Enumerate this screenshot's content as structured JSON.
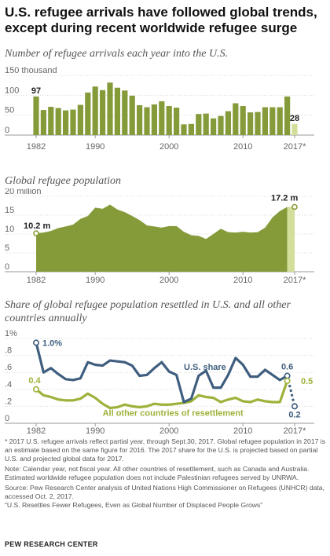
{
  "title": "U.S. refugee arrivals have followed global trends, except during recent worldwide refugee surge",
  "colors": {
    "green": "#859B3A",
    "light_green": "#D3DE9A",
    "blue": "#3F5E7F",
    "yellow_green": "#9DB23A",
    "grid": "#d9d9d9"
  },
  "notes": {
    "asterisk": "* 2017 U.S. refugee arrivals reflect partial year, through Sept.30, 2017. Global refugee population in 2017 is an estimate based on the same figure for 2016. The 2017 share for the U.S. is projected based on partial U.S. and projected global data for 2017.",
    "note": "Note: Calendar year, not fiscal year. All other countries of resettlement, such as Canada and Australia. Estimated worldwide refugee population does not include Palestinian refugees served by UNRWA.",
    "source": "Source: Pew Research Center analysis of United Nations High Commissioner on Refugees (UNHCR) data, accessed Oct. 2, 2017.",
    "report": "“U.S. Resettles Fewer Refugees, Even as Global Number of Displaced People Grows”"
  },
  "brand": "PEW RESEARCH CENTER",
  "chart_data": [
    {
      "type": "bar",
      "title": "Number of refugee arrivals each year into the U.S.",
      "y_ticks": [
        "150 thousand",
        "100",
        "50",
        "0"
      ],
      "y_tick_values": [
        150,
        100,
        50,
        0
      ],
      "ylim": [
        0,
        150
      ],
      "x_tick_labels": [
        "1982",
        "1990",
        "2000",
        "2010",
        "2017*"
      ],
      "x_tick_years": [
        1982,
        1990,
        2000,
        2010,
        2017
      ],
      "categories": [
        1982,
        1983,
        1984,
        1985,
        1986,
        1987,
        1988,
        1989,
        1990,
        1991,
        1992,
        1993,
        1994,
        1995,
        1996,
        1997,
        1998,
        1999,
        2000,
        2001,
        2002,
        2003,
        2004,
        2005,
        2006,
        2007,
        2008,
        2009,
        2010,
        2011,
        2012,
        2013,
        2014,
        2015,
        2016,
        2017
      ],
      "values": [
        97,
        63,
        71,
        68,
        62,
        64,
        76,
        107,
        122,
        113,
        132,
        119,
        112,
        99,
        75,
        70,
        77,
        85,
        73,
        69,
        27,
        28,
        53,
        54,
        42,
        48,
        60,
        80,
        73,
        57,
        58,
        70,
        70,
        70,
        97,
        28
      ],
      "labels": {
        "first": "97",
        "last": "28"
      }
    },
    {
      "type": "area",
      "title": "Global refugee population",
      "y_ticks": [
        "20 million",
        "15",
        "10",
        "5",
        "0"
      ],
      "y_tick_values": [
        20,
        15,
        10,
        5,
        0
      ],
      "ylim": [
        0,
        20
      ],
      "x_tick_labels": [
        "1982",
        "1990",
        "2000",
        "2010",
        "2017*"
      ],
      "x_tick_years": [
        1982,
        1990,
        2000,
        2010,
        2017
      ],
      "x": [
        1982,
        1983,
        1984,
        1985,
        1986,
        1987,
        1988,
        1989,
        1990,
        1991,
        1992,
        1993,
        1994,
        1995,
        1996,
        1997,
        1998,
        1999,
        2000,
        2001,
        2002,
        2003,
        2004,
        2005,
        2006,
        2007,
        2008,
        2009,
        2010,
        2011,
        2012,
        2013,
        2014,
        2015,
        2016,
        2017
      ],
      "values": [
        10.2,
        10.4,
        10.8,
        11.6,
        12.0,
        12.5,
        14.0,
        14.8,
        17.0,
        16.7,
        17.8,
        16.5,
        15.8,
        14.8,
        13.7,
        12.3,
        12.0,
        11.7,
        12.1,
        12.1,
        10.6,
        9.7,
        9.5,
        8.7,
        10.0,
        11.4,
        10.5,
        10.4,
        10.6,
        10.4,
        10.5,
        11.7,
        14.4,
        16.1,
        17.2,
        17.2
      ],
      "labels": {
        "first": "10.2 m",
        "last": "17.2 m"
      }
    },
    {
      "type": "line",
      "title": "Share of global refugee population resettled in U.S. and all other countries annually",
      "y_ticks": [
        "1%",
        ".8",
        ".6",
        ".4",
        ".2",
        "0"
      ],
      "y_tick_values": [
        1.0,
        0.8,
        0.6,
        0.4,
        0.2,
        0
      ],
      "ylim": [
        0,
        1.0
      ],
      "x_tick_labels": [
        "1982",
        "1990",
        "2000",
        "2010",
        "2017*"
      ],
      "x_tick_years": [
        1982,
        1990,
        2000,
        2010,
        2017
      ],
      "x": [
        1982,
        1983,
        1984,
        1985,
        1986,
        1987,
        1988,
        1989,
        1990,
        1991,
        1992,
        1993,
        1994,
        1995,
        1996,
        1997,
        1998,
        1999,
        2000,
        2001,
        2002,
        2003,
        2004,
        2005,
        2006,
        2007,
        2008,
        2009,
        2010,
        2011,
        2012,
        2013,
        2014,
        2015,
        2016,
        2017
      ],
      "series": [
        {
          "name": "U.S. share",
          "values": [
            0.95,
            0.6,
            0.65,
            0.58,
            0.52,
            0.51,
            0.53,
            0.72,
            0.69,
            0.68,
            0.74,
            0.73,
            0.72,
            0.68,
            0.56,
            0.57,
            0.65,
            0.72,
            0.61,
            0.57,
            0.25,
            0.29,
            0.56,
            0.62,
            0.42,
            0.42,
            0.57,
            0.77,
            0.69,
            0.55,
            0.55,
            0.63,
            0.57,
            0.51,
            0.56,
            0.2
          ],
          "labels": {
            "first": "1.0%",
            "last": "0.2",
            "2016": "0.6"
          }
        },
        {
          "name": "All other countries of resettlement",
          "values": [
            0.4,
            0.33,
            0.31,
            0.28,
            0.27,
            0.27,
            0.29,
            0.35,
            0.3,
            0.23,
            0.18,
            0.19,
            0.22,
            0.2,
            0.19,
            0.2,
            0.23,
            0.22,
            0.22,
            0.23,
            0.24,
            0.26,
            0.33,
            0.31,
            0.3,
            0.25,
            0.28,
            0.3,
            0.26,
            0.25,
            0.28,
            0.26,
            0.25,
            0.25,
            0.5,
            0.5
          ],
          "labels": {
            "first": "0.4",
            "last": "0.5"
          }
        }
      ]
    }
  ]
}
